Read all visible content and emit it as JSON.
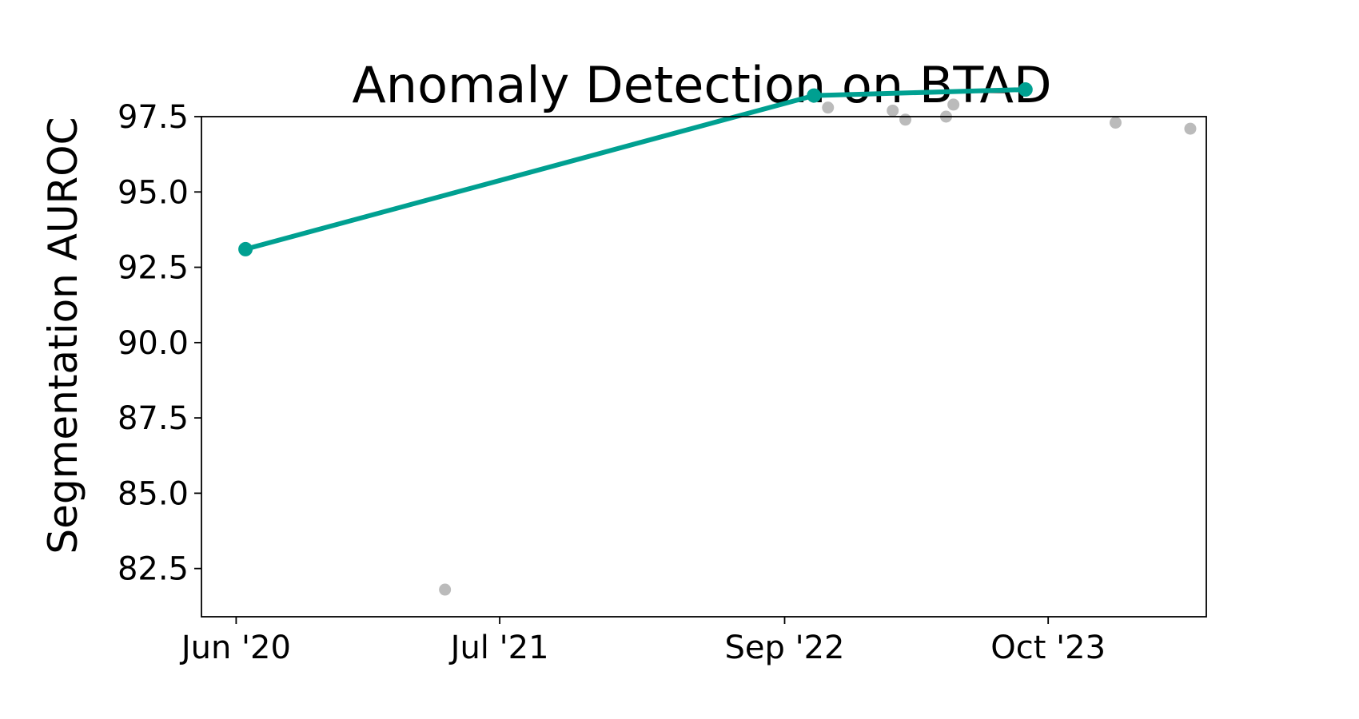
{
  "chart_data": {
    "type": "scatter",
    "title": "Anomaly Detection on BTAD",
    "xlabel": "",
    "ylabel": "Segmentation AUROC",
    "x_axis": "date",
    "xlim": [
      "2020-04-10",
      "2024-05-25"
    ],
    "ylim": [
      80.9,
      97.5
    ],
    "x_ticks": [
      {
        "date": "2020-06-01",
        "label": "Jun '20"
      },
      {
        "date": "2021-07-01",
        "label": "Jul '21"
      },
      {
        "date": "2022-09-01",
        "label": "Sep '22"
      },
      {
        "date": "2023-10-01",
        "label": "Oct '23"
      }
    ],
    "y_ticks": [
      82.5,
      85.0,
      87.5,
      90.0,
      92.5,
      95.0,
      97.5
    ],
    "grid": false,
    "legend": "none",
    "series": [
      {
        "role": "frontier",
        "color": "#00a091",
        "line": true,
        "points": [
          {
            "date": "2020-06-15",
            "value": 93.1
          },
          {
            "date": "2022-10-15",
            "value": 98.2
          },
          {
            "date": "2023-08-28",
            "value": 98.4
          }
        ]
      },
      {
        "role": "other",
        "color": "#bbbbbb",
        "line": false,
        "points": [
          {
            "date": "2021-04-10",
            "value": 81.8
          },
          {
            "date": "2022-11-05",
            "value": 97.8
          },
          {
            "date": "2023-02-10",
            "value": 97.7
          },
          {
            "date": "2023-03-01",
            "value": 97.4
          },
          {
            "date": "2023-05-01",
            "value": 97.5
          },
          {
            "date": "2023-05-12",
            "value": 97.9
          },
          {
            "date": "2024-01-10",
            "value": 97.3
          },
          {
            "date": "2024-05-01",
            "value": 97.1
          }
        ]
      }
    ]
  }
}
